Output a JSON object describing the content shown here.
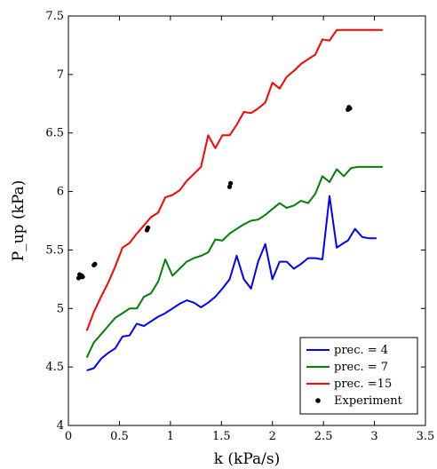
{
  "chart_data": {
    "type": "line",
    "xlabel": "k (kPa/s)",
    "ylabel": "P_up (kPa)",
    "xlim": [
      0,
      3.5
    ],
    "ylim": [
      4,
      7.5
    ],
    "x_ticks": [
      "0",
      "0.5",
      "1",
      "1.5",
      "2",
      "2.5",
      "3",
      "3.5"
    ],
    "y_ticks": [
      "4",
      "4.5",
      "5",
      "5.5",
      "6",
      "6.5",
      "7",
      "7.5"
    ],
    "grid": false,
    "legend_position": "bottom-right",
    "series": [
      {
        "name": "prec. = 4",
        "color": "#0000ff",
        "x": [
          0.18,
          0.25,
          0.32,
          0.39,
          0.46,
          0.53,
          0.6,
          0.67,
          0.74,
          0.81,
          0.88,
          0.95,
          1.02,
          1.09,
          1.16,
          1.23,
          1.3,
          1.37,
          1.44,
          1.51,
          1.58,
          1.65,
          1.72,
          1.79,
          1.86,
          1.93,
          2.0,
          2.07,
          2.14,
          2.21,
          2.28,
          2.35,
          2.42,
          2.49,
          2.56,
          2.63,
          2.7,
          2.74,
          2.81,
          2.88,
          2.95,
          3.02
        ],
        "y": [
          4.47,
          4.49,
          4.57,
          4.62,
          4.66,
          4.76,
          4.77,
          4.87,
          4.85,
          4.89,
          4.93,
          4.96,
          5.0,
          5.04,
          5.07,
          5.05,
          5.01,
          5.05,
          5.1,
          5.17,
          5.25,
          5.45,
          5.25,
          5.17,
          5.4,
          5.55,
          5.25,
          5.4,
          5.4,
          5.34,
          5.38,
          5.43,
          5.43,
          5.42,
          5.96,
          5.52,
          5.56,
          5.58,
          5.68,
          5.61,
          5.6,
          5.6
        ]
      },
      {
        "name": "prec. = 7",
        "color": "#008000",
        "x": [
          0.18,
          0.25,
          0.32,
          0.39,
          0.46,
          0.53,
          0.6,
          0.67,
          0.74,
          0.81,
          0.88,
          0.95,
          1.02,
          1.09,
          1.16,
          1.23,
          1.3,
          1.37,
          1.44,
          1.51,
          1.58,
          1.65,
          1.72,
          1.79,
          1.86,
          1.93,
          2.0,
          2.07,
          2.14,
          2.21,
          2.28,
          2.35,
          2.42,
          2.49,
          2.56,
          2.63,
          2.7,
          2.77,
          2.84,
          2.91,
          2.98,
          3.08
        ],
        "y": [
          4.58,
          4.71,
          4.78,
          4.85,
          4.92,
          4.96,
          5.0,
          5.0,
          5.1,
          5.13,
          5.23,
          5.42,
          5.28,
          5.34,
          5.4,
          5.43,
          5.45,
          5.48,
          5.59,
          5.58,
          5.64,
          5.68,
          5.72,
          5.75,
          5.76,
          5.8,
          5.85,
          5.9,
          5.86,
          5.88,
          5.92,
          5.9,
          5.98,
          6.13,
          6.08,
          6.19,
          6.13,
          6.2,
          6.21,
          6.21,
          6.21,
          6.21
        ]
      },
      {
        "name": "prec. =15",
        "color": "#ff0000",
        "x": [
          0.18,
          0.25,
          0.32,
          0.39,
          0.46,
          0.53,
          0.6,
          0.67,
          0.74,
          0.81,
          0.88,
          0.95,
          1.02,
          1.09,
          1.16,
          1.23,
          1.3,
          1.37,
          1.44,
          1.51,
          1.58,
          1.65,
          1.72,
          1.79,
          1.86,
          1.93,
          2.0,
          2.07,
          2.14,
          2.21,
          2.28,
          2.35,
          2.42,
          2.49,
          2.56,
          2.63,
          2.7,
          2.77,
          2.84,
          2.91,
          2.98,
          3.08
        ],
        "y": [
          4.81,
          4.97,
          5.1,
          5.22,
          5.36,
          5.52,
          5.56,
          5.64,
          5.71,
          5.78,
          5.82,
          5.95,
          5.97,
          6.01,
          6.09,
          6.15,
          6.21,
          6.48,
          6.37,
          6.48,
          6.48,
          6.57,
          6.68,
          6.67,
          6.71,
          6.76,
          6.93,
          6.88,
          6.98,
          7.03,
          7.09,
          7.13,
          7.17,
          7.3,
          7.29,
          7.38,
          7.38,
          7.38,
          7.38,
          7.38,
          7.38,
          7.38
        ]
      }
    ],
    "experiment": {
      "name": "Experiment",
      "color": "#000000",
      "x": [
        0.1,
        0.11,
        0.12,
        0.13,
        0.14,
        0.25,
        0.26,
        0.77,
        0.78,
        1.58,
        1.59,
        2.74,
        2.75,
        2.76
      ],
      "y": [
        5.26,
        5.29,
        5.27,
        5.28,
        5.27,
        5.37,
        5.38,
        5.67,
        5.69,
        6.04,
        6.07,
        6.7,
        6.72,
        6.71
      ]
    }
  }
}
